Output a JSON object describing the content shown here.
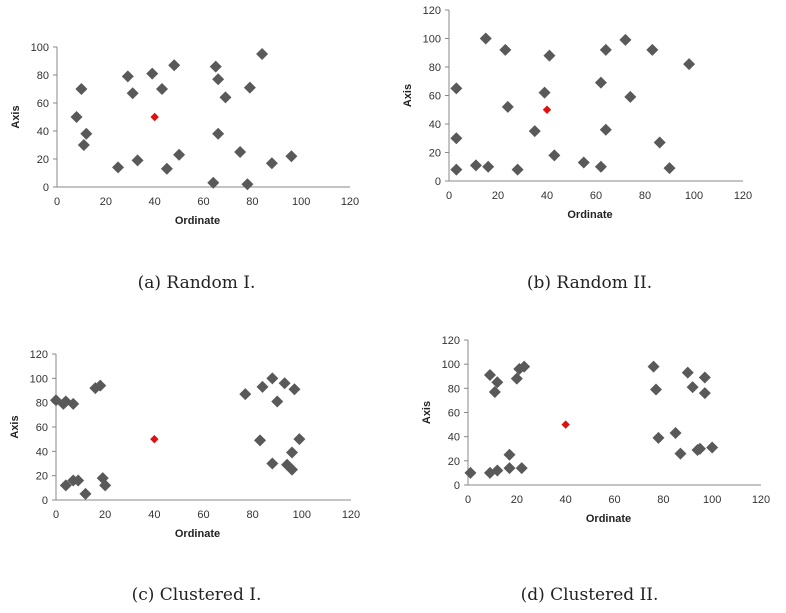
{
  "colors": {
    "point": "#595959",
    "target": "#e01010",
    "axis": "#888888"
  },
  "chart_data": [
    {
      "type": "scatter",
      "caption": "(a) Random I.",
      "xlabel": "Ordinate",
      "ylabel": "Axis",
      "xlim": [
        0,
        120
      ],
      "ylim": [
        0,
        100
      ],
      "xticks": [
        0,
        20,
        40,
        60,
        80,
        100,
        120
      ],
      "yticks": [
        0,
        20,
        40,
        60,
        80,
        100
      ],
      "series": [
        {
          "points": [
            [
              8,
              50
            ],
            [
              10,
              70
            ],
            [
              11,
              30
            ],
            [
              12,
              38
            ],
            [
              25,
              14
            ],
            [
              29,
              79
            ],
            [
              31,
              67
            ],
            [
              33,
              19
            ],
            [
              39,
              81
            ],
            [
              43,
              70
            ],
            [
              45,
              13
            ],
            [
              48,
              87
            ],
            [
              50,
              23
            ],
            [
              64,
              3
            ],
            [
              65,
              86
            ],
            [
              66,
              77
            ],
            [
              66,
              38
            ],
            [
              69,
              64
            ],
            [
              75,
              25
            ],
            [
              78,
              2
            ],
            [
              79,
              71
            ],
            [
              84,
              95
            ],
            [
              88,
              17
            ],
            [
              96,
              22
            ]
          ]
        },
        {
          "role": "target",
          "points": [
            [
              40,
              50
            ]
          ]
        }
      ]
    },
    {
      "type": "scatter",
      "caption": "(b) Random II.",
      "xlabel": "Ordinate",
      "ylabel": "Axis",
      "xlim": [
        0,
        120
      ],
      "ylim": [
        0,
        120
      ],
      "xticks": [
        0,
        20,
        40,
        60,
        80,
        100,
        120
      ],
      "yticks": [
        0,
        20,
        40,
        60,
        80,
        100,
        120
      ],
      "series": [
        {
          "points": [
            [
              3,
              65
            ],
            [
              3,
              30
            ],
            [
              3,
              8
            ],
            [
              11,
              11
            ],
            [
              15,
              100
            ],
            [
              16,
              10
            ],
            [
              23,
              92
            ],
            [
              24,
              52
            ],
            [
              28,
              8
            ],
            [
              35,
              35
            ],
            [
              39,
              62
            ],
            [
              41,
              88
            ],
            [
              43,
              18
            ],
            [
              55,
              13
            ],
            [
              62,
              10
            ],
            [
              62,
              69
            ],
            [
              64,
              92
            ],
            [
              64,
              36
            ],
            [
              72,
              99
            ],
            [
              74,
              59
            ],
            [
              83,
              92
            ],
            [
              86,
              27
            ],
            [
              90,
              9
            ],
            [
              98,
              82
            ]
          ]
        },
        {
          "role": "target",
          "points": [
            [
              40,
              50
            ]
          ]
        }
      ]
    },
    {
      "type": "scatter",
      "caption": "(c) Clustered I.",
      "xlabel": "Ordinate",
      "ylabel": "Axis",
      "xlim": [
        0,
        120
      ],
      "ylim": [
        0,
        120
      ],
      "xticks": [
        0,
        20,
        40,
        60,
        80,
        100,
        120
      ],
      "yticks": [
        0,
        20,
        40,
        60,
        80,
        100,
        120
      ],
      "series": [
        {
          "points": [
            [
              0,
              82
            ],
            [
              3,
              79
            ],
            [
              4,
              81
            ],
            [
              7,
              79
            ],
            [
              4,
              12
            ],
            [
              7,
              16
            ],
            [
              9,
              16
            ],
            [
              12,
              5
            ],
            [
              16,
              92
            ],
            [
              18,
              94
            ],
            [
              19,
              18
            ],
            [
              20,
              12
            ],
            [
              77,
              87
            ],
            [
              83,
              49
            ],
            [
              84,
              93
            ],
            [
              88,
              100
            ],
            [
              88,
              30
            ],
            [
              90,
              81
            ],
            [
              93,
              96
            ],
            [
              94,
              29
            ],
            [
              96,
              25
            ],
            [
              96,
              39
            ],
            [
              97,
              91
            ],
            [
              99,
              50
            ]
          ]
        },
        {
          "role": "target",
          "points": [
            [
              40,
              50
            ]
          ]
        }
      ]
    },
    {
      "type": "scatter",
      "caption": "(d) Clustered II.",
      "xlabel": "Ordinate",
      "ylabel": "Axis",
      "xlim": [
        0,
        120
      ],
      "ylim": [
        0,
        120
      ],
      "xticks": [
        0,
        20,
        40,
        60,
        80,
        100,
        120
      ],
      "yticks": [
        0,
        20,
        40,
        60,
        80,
        100,
        120
      ],
      "series": [
        {
          "points": [
            [
              1,
              10
            ],
            [
              9,
              91
            ],
            [
              9,
              10
            ],
            [
              11,
              77
            ],
            [
              12,
              85
            ],
            [
              12,
              12
            ],
            [
              17,
              25
            ],
            [
              17,
              14
            ],
            [
              20,
              88
            ],
            [
              21,
              96
            ],
            [
              22,
              14
            ],
            [
              23,
              98
            ],
            [
              76,
              98
            ],
            [
              77,
              79
            ],
            [
              78,
              39
            ],
            [
              85,
              43
            ],
            [
              87,
              26
            ],
            [
              90,
              93
            ],
            [
              92,
              81
            ],
            [
              94,
              29
            ],
            [
              95,
              30
            ],
            [
              97,
              89
            ],
            [
              97,
              76
            ],
            [
              100,
              31
            ]
          ]
        },
        {
          "role": "target",
          "points": [
            [
              40,
              50
            ]
          ]
        }
      ]
    }
  ]
}
